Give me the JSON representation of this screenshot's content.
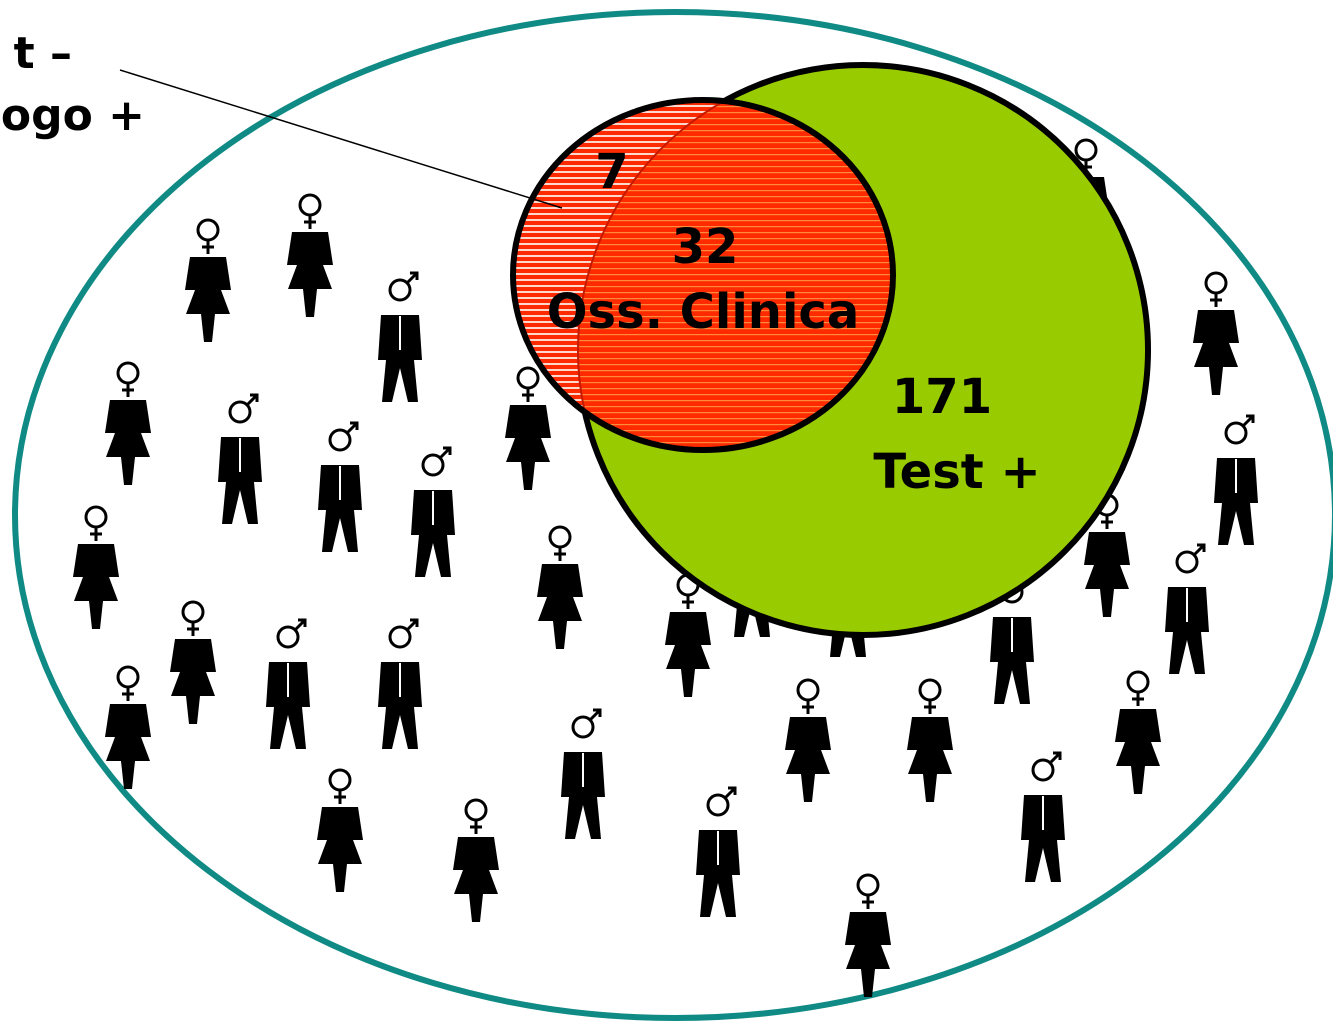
{
  "callout": {
    "line1": "t –",
    "line2": "ogo +"
  },
  "red_only": {
    "count": 7
  },
  "overlap": {
    "count": 32,
    "label": "Oss. Clinica"
  },
  "green": {
    "count": 171,
    "label": "Test +"
  }
}
